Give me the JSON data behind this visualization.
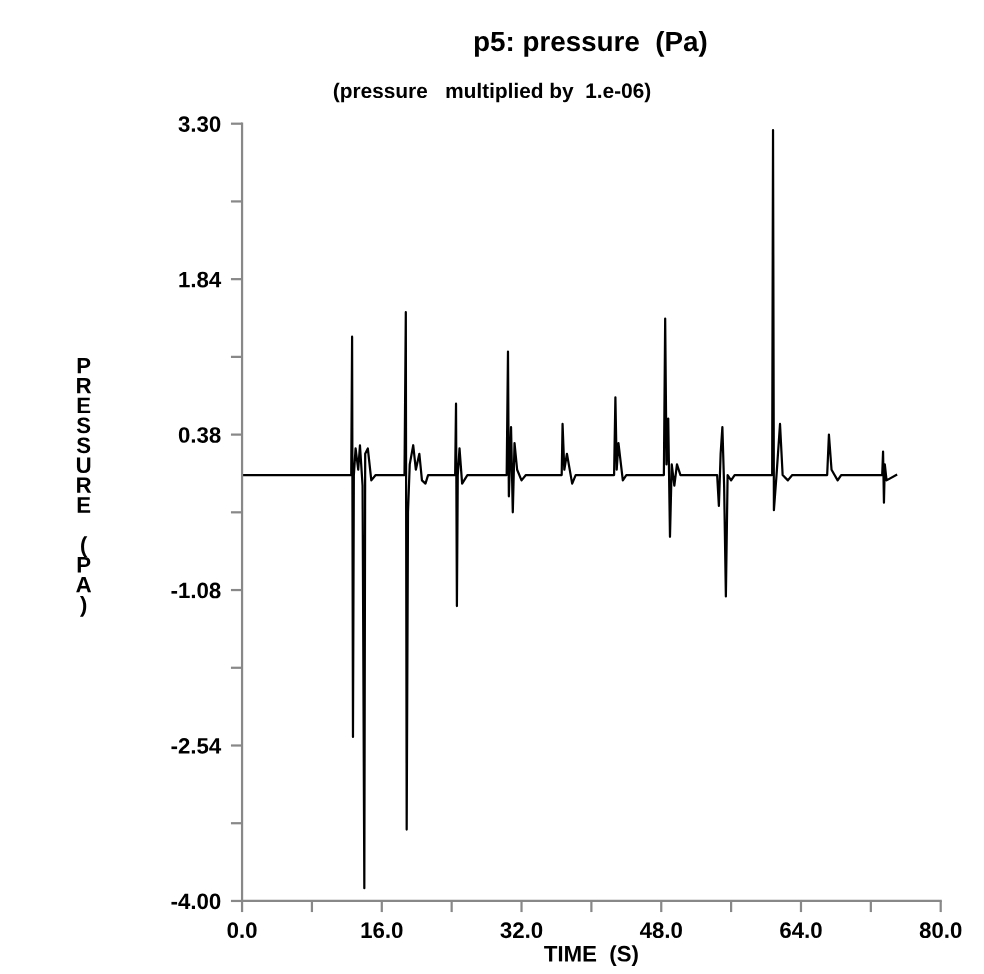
{
  "chart_data": {
    "type": "line",
    "title": "p5: pressure  (Pa)",
    "subtitle": "(pressure   multiplied by  1.e-06)",
    "xlabel": "TIME  (S)",
    "ylabel": "PRESSURE (PA)",
    "x": [
      0,
      12.5,
      12.6,
      12.7,
      12.8,
      13.0,
      13.3,
      13.5,
      13.8,
      14.0,
      14.1,
      14.4,
      14.8,
      15.3,
      18.6,
      18.75,
      18.85,
      19.0,
      19.2,
      19.6,
      19.9,
      20.3,
      20.6,
      21.0,
      21.3,
      24.4,
      24.5,
      24.6,
      24.7,
      24.9,
      25.2,
      25.8,
      30.3,
      30.45,
      30.55,
      30.8,
      31.0,
      31.2,
      31.5,
      32.0,
      32.5,
      36.6,
      36.7,
      36.9,
      37.2,
      37.8,
      38.2,
      42.6,
      42.75,
      42.9,
      43.1,
      43.6,
      44.0,
      48.3,
      48.45,
      48.6,
      48.8,
      49.0,
      49.2,
      49.5,
      49.8,
      50.2,
      54.4,
      54.6,
      54.8,
      55.0,
      55.2,
      55.4,
      55.6,
      56.0,
      56.4,
      60.7,
      60.8,
      60.9,
      61.2,
      61.6,
      61.9,
      62.5,
      63.0,
      67.0,
      67.2,
      67.5,
      68.2,
      68.6,
      73.3,
      73.4,
      73.5,
      73.6,
      73.8,
      74.9
    ],
    "series": [
      {
        "color": "#000000",
        "values": [
          0,
          0,
          1.3,
          -2.46,
          0,
          0.25,
          0.05,
          0.28,
          -0.1,
          -3.88,
          0.2,
          0.25,
          -0.05,
          0,
          0,
          1.53,
          -3.33,
          -0.35,
          0.1,
          0.28,
          0.05,
          0.2,
          -0.05,
          -0.08,
          0,
          0,
          0.67,
          -1.23,
          0,
          0.25,
          -0.08,
          0,
          0,
          1.16,
          -0.2,
          0.45,
          -0.35,
          0.3,
          0.05,
          -0.05,
          0,
          0,
          0.48,
          0.05,
          0.2,
          -0.08,
          0,
          0,
          0.73,
          0.05,
          0.3,
          -0.05,
          0,
          0,
          1.47,
          0.1,
          0.53,
          -0.58,
          0.1,
          -0.1,
          0.1,
          0,
          0,
          -0.29,
          0.2,
          0.45,
          -0.1,
          -1.14,
          0,
          -0.05,
          0,
          0,
          3.24,
          -0.33,
          0,
          0.48,
          0,
          -0.05,
          0,
          0,
          0.38,
          0.05,
          -0.05,
          0,
          0,
          0.22,
          -0.26,
          0.1,
          -0.05,
          0
        ]
      }
    ],
    "xlim": [
      0,
      80
    ],
    "ylim": [
      -4.0,
      3.3
    ],
    "xticks": [
      {
        "value": 0,
        "label": "0.0"
      },
      {
        "value": 8,
        "label": null
      },
      {
        "value": 16,
        "label": "16.0"
      },
      {
        "value": 24,
        "label": null
      },
      {
        "value": 32,
        "label": "32.0"
      },
      {
        "value": 40,
        "label": null
      },
      {
        "value": 48,
        "label": "48.0"
      },
      {
        "value": 56,
        "label": null
      },
      {
        "value": 64,
        "label": "64.0"
      },
      {
        "value": 72,
        "label": null
      },
      {
        "value": 80,
        "label": "80.0"
      }
    ],
    "yticks": [
      {
        "value": -4.0,
        "label": "-4.00"
      },
      {
        "value": -3.27,
        "label": null
      },
      {
        "value": -2.54,
        "label": "-2.54"
      },
      {
        "value": -1.81,
        "label": null
      },
      {
        "value": -1.08,
        "label": "-1.08"
      },
      {
        "value": -0.35,
        "label": null
      },
      {
        "value": 0.38,
        "label": "0.38"
      },
      {
        "value": 1.11,
        "label": null
      },
      {
        "value": 1.84,
        "label": "1.84"
      },
      {
        "value": 2.57,
        "label": null
      },
      {
        "value": 3.3,
        "label": "3.30"
      }
    ],
    "grid": false,
    "legend": false,
    "marker": "none",
    "line_style": "solid"
  }
}
